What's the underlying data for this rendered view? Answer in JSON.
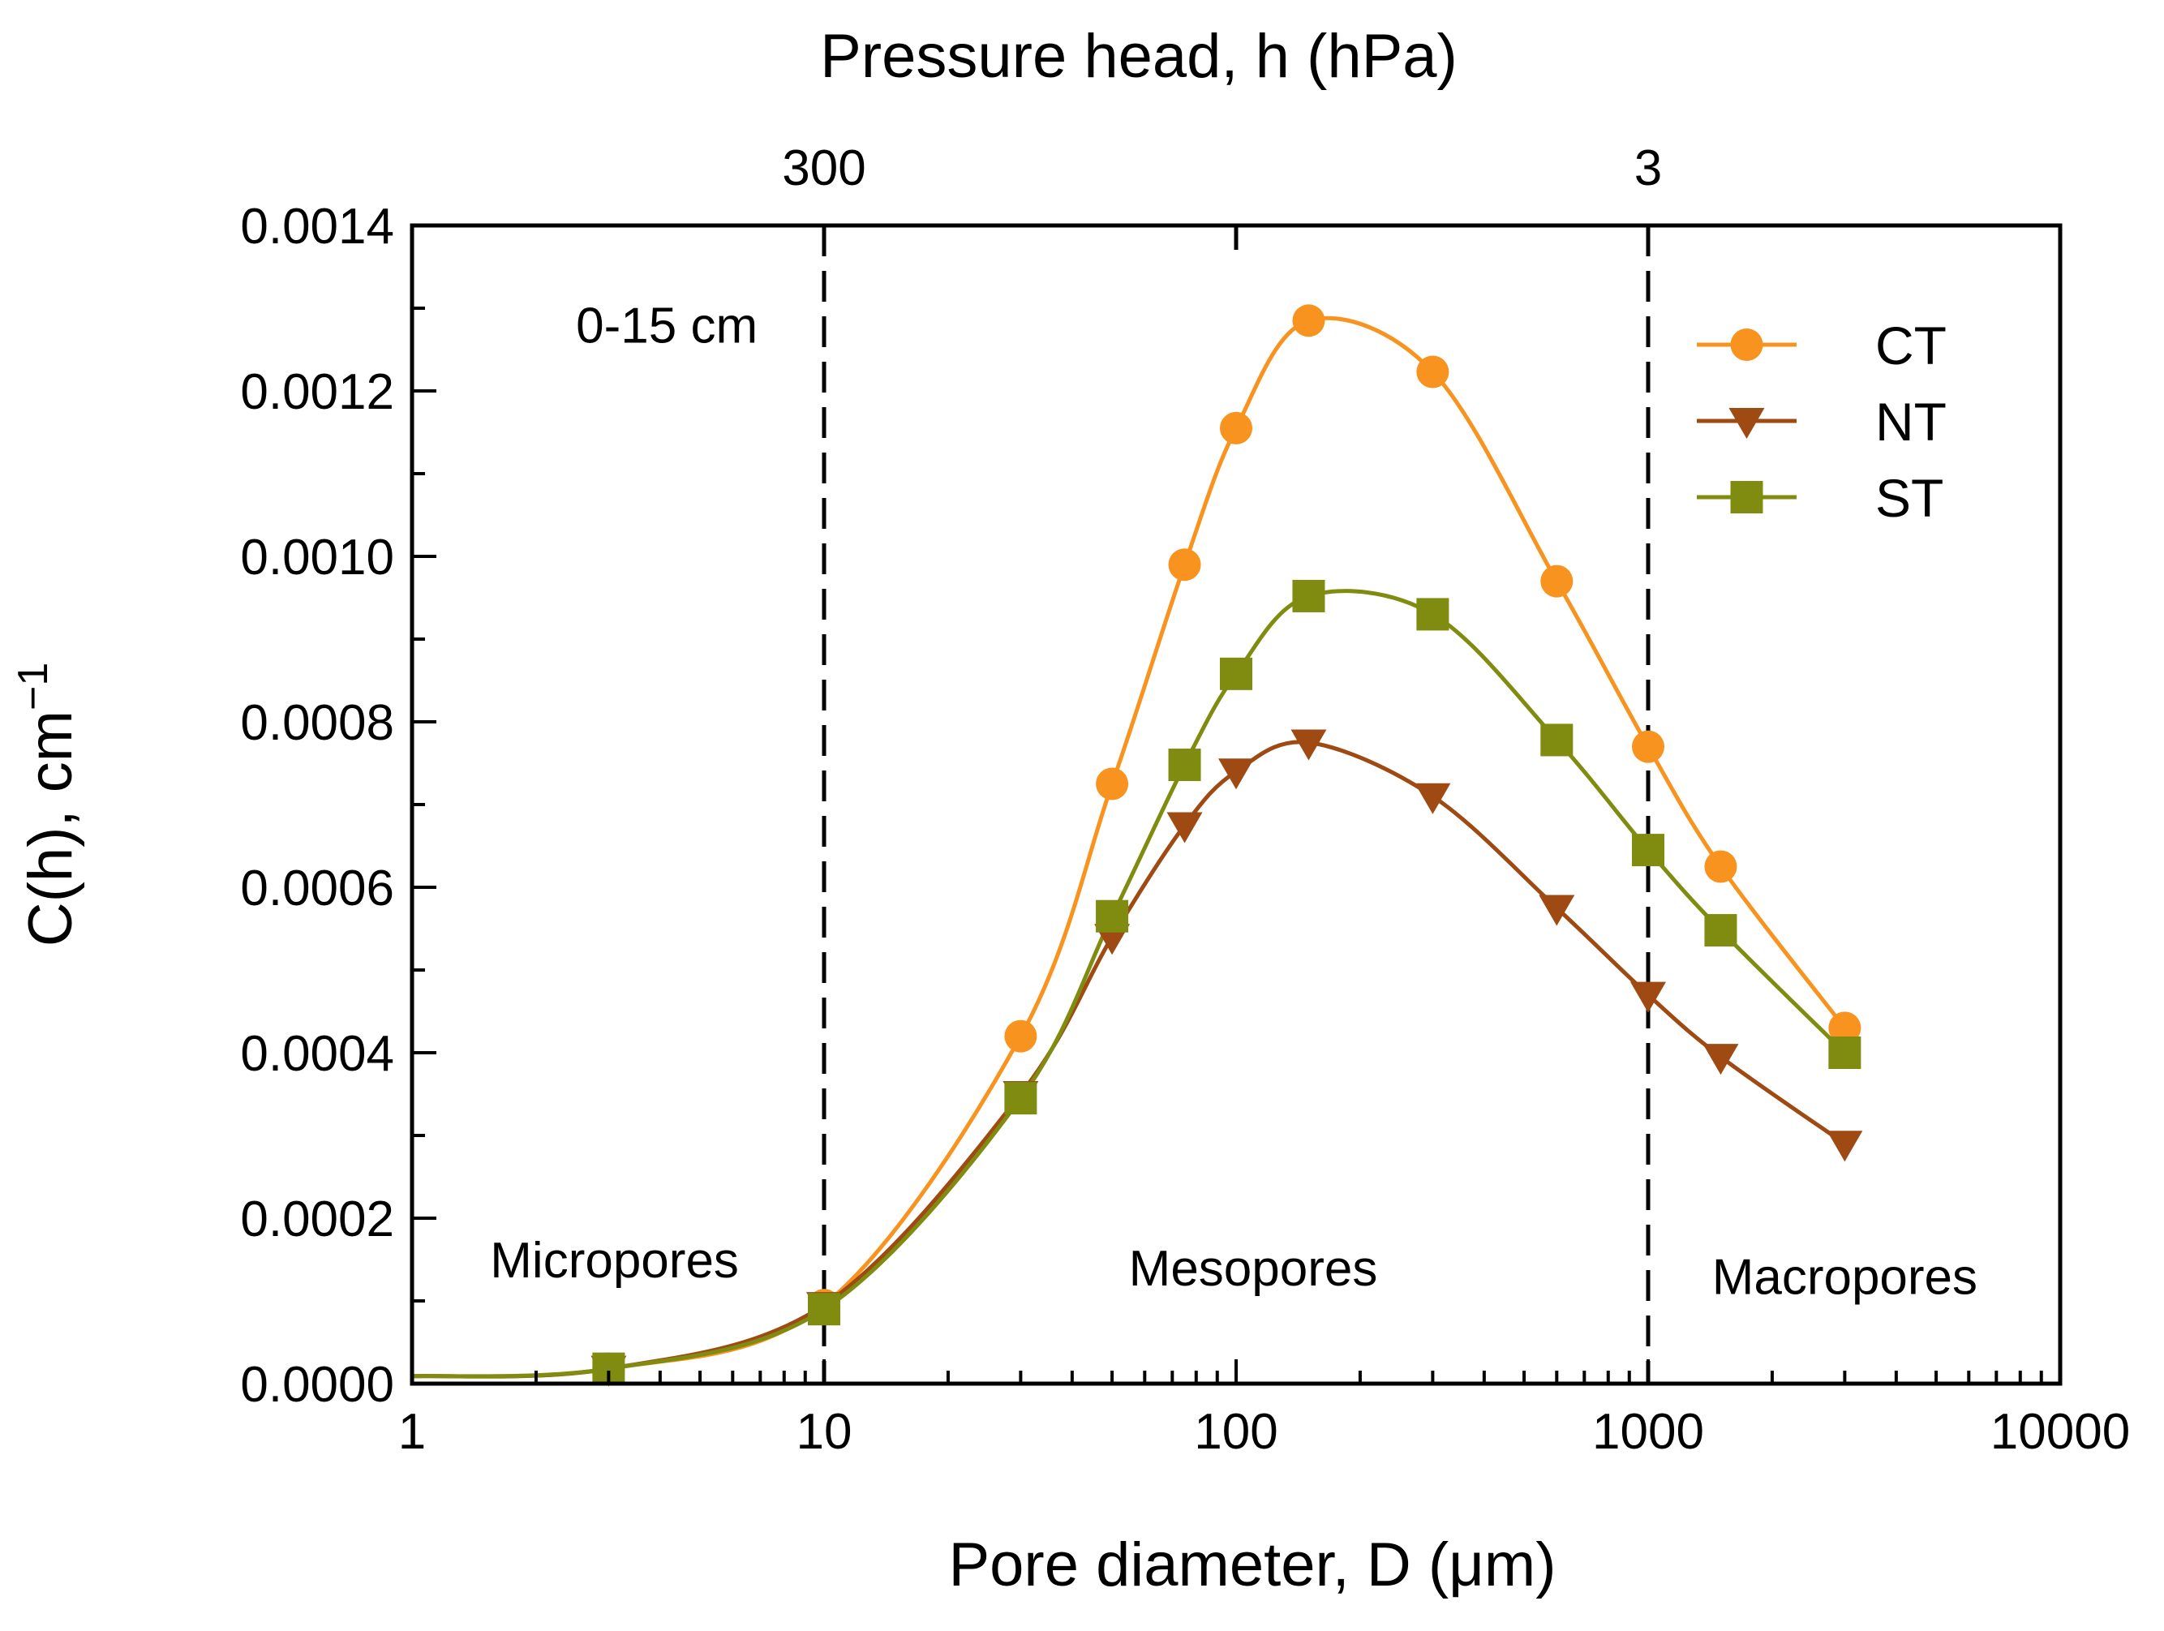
{
  "chart_data": {
    "type": "line",
    "xlabel": "Pore diameter, D (μm)",
    "x2label": "Pressure head, h (hPa)",
    "ylabel": "C(h), cm",
    "ylabel_superscript": "−1",
    "x_scale": "log",
    "xlim": [
      1,
      10000
    ],
    "ylim": [
      0,
      0.0014
    ],
    "x_ticks": [
      1,
      10,
      100,
      1000,
      10000
    ],
    "x_tick_labels": [
      "1",
      "10",
      "100",
      "1000",
      "10000"
    ],
    "y_ticks": [
      0,
      0.0002,
      0.0004,
      0.0006,
      0.0008,
      0.001,
      0.0012,
      0.0014
    ],
    "y_tick_labels": [
      "0.0000",
      "0.0002",
      "0.0004",
      "0.0006",
      "0.0008",
      "0.0010",
      "0.0012",
      "0.0014"
    ],
    "top_ticks": [
      {
        "x": 10,
        "label": "300"
      },
      {
        "x": 100,
        "label": ""
      },
      {
        "x": 1000,
        "label": "3"
      }
    ],
    "vertical_dashed_lines": [
      10,
      1000
    ],
    "annotations": [
      {
        "text": "0-15 cm",
        "x": 2.5,
        "y": 0.00128
      },
      {
        "text": "Micropores",
        "x": 3.1,
        "y": 0.00015
      },
      {
        "text": "Mesopores",
        "x": 110,
        "y": 0.00014
      },
      {
        "text": "Macropores",
        "x": 3000,
        "y": 0.00013
      }
    ],
    "grid": false,
    "legend_position": "top-right",
    "series": [
      {
        "name": "CT",
        "color": "#F7931E",
        "marker": "circle",
        "x": [
          1,
          3,
          10,
          30,
          50,
          75,
          100,
          150,
          300,
          600,
          1000,
          1500,
          3000
        ],
        "y": [
          9e-06,
          1.8e-05,
          9.5e-05,
          0.00042,
          0.000725,
          0.00099,
          0.001155,
          0.001285,
          0.001223,
          0.00097,
          0.00077,
          0.000625,
          0.00043
        ],
        "marker_x": [
          3,
          10,
          30,
          50,
          75,
          100,
          150,
          300,
          600,
          1000,
          1500,
          3000
        ]
      },
      {
        "name": "NT",
        "color": "#9E4A12",
        "marker": "triangle-down",
        "x": [
          1,
          3,
          10,
          30,
          50,
          75,
          100,
          150,
          300,
          600,
          1000,
          1500,
          3000
        ],
        "y": [
          9e-06,
          1.8e-05,
          9.5e-05,
          0.00035,
          0.00054,
          0.000675,
          0.00074,
          0.000775,
          0.00071,
          0.000575,
          0.00047,
          0.000395,
          0.00029
        ],
        "marker_x": [
          3,
          10,
          30,
          50,
          75,
          100,
          150,
          300,
          600,
          1000,
          1500,
          3000
        ]
      },
      {
        "name": "ST",
        "color": "#7F8C0F",
        "marker": "square",
        "x": [
          1,
          3,
          10,
          30,
          50,
          75,
          100,
          150,
          300,
          600,
          1000,
          1500,
          3000
        ],
        "y": [
          9e-06,
          1.8e-05,
          9e-05,
          0.000345,
          0.000565,
          0.000748,
          0.000858,
          0.000952,
          0.00093,
          0.000778,
          0.000645,
          0.000548,
          0.0004
        ],
        "marker_x": [
          3,
          10,
          30,
          50,
          75,
          100,
          150,
          300,
          600,
          1000,
          1500,
          3000
        ]
      }
    ]
  }
}
